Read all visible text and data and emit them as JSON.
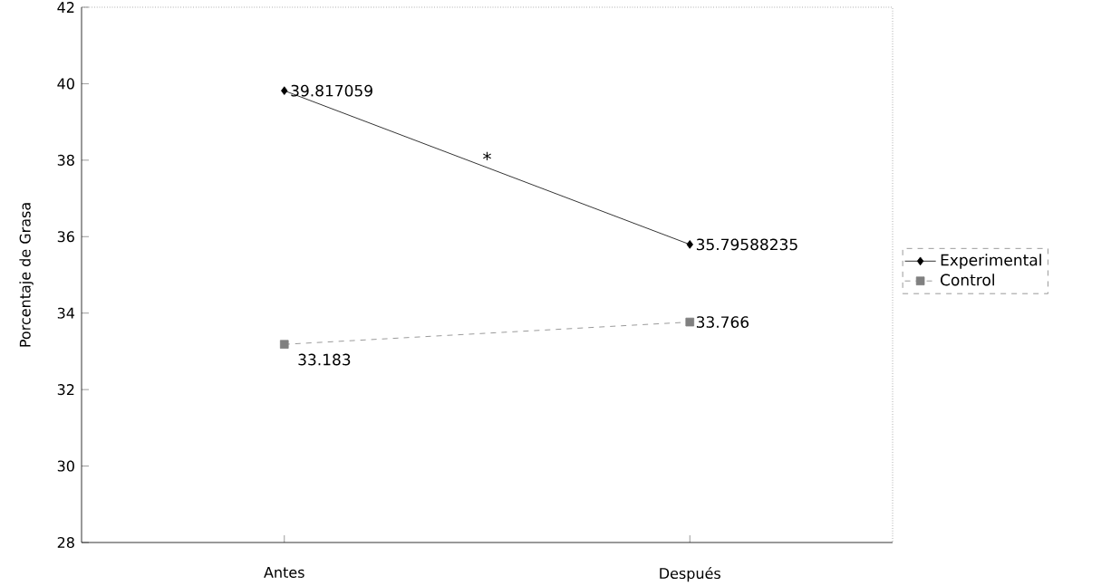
{
  "chart_data": {
    "type": "line",
    "ylabel": "Porcentaje de Grasa",
    "categories": [
      "Antes",
      "Después"
    ],
    "series": [
      {
        "name": "Experimental",
        "color": "#000000",
        "marker": "diamond",
        "line_style": "solid",
        "values": [
          39.817059,
          35.79588235
        ],
        "value_labels": [
          "39.817059",
          "35.79588235"
        ]
      },
      {
        "name": "Control",
        "color": "#808080",
        "marker": "square",
        "line_style": "dashed",
        "values": [
          33.183,
          33.766
        ],
        "value_labels": [
          "33.183",
          "33.766"
        ]
      }
    ],
    "ylim": [
      28,
      42
    ],
    "yticks": [
      28,
      30,
      32,
      34,
      36,
      38,
      40,
      42
    ],
    "grid": false,
    "legend": "right",
    "annotations": [
      "*"
    ]
  }
}
